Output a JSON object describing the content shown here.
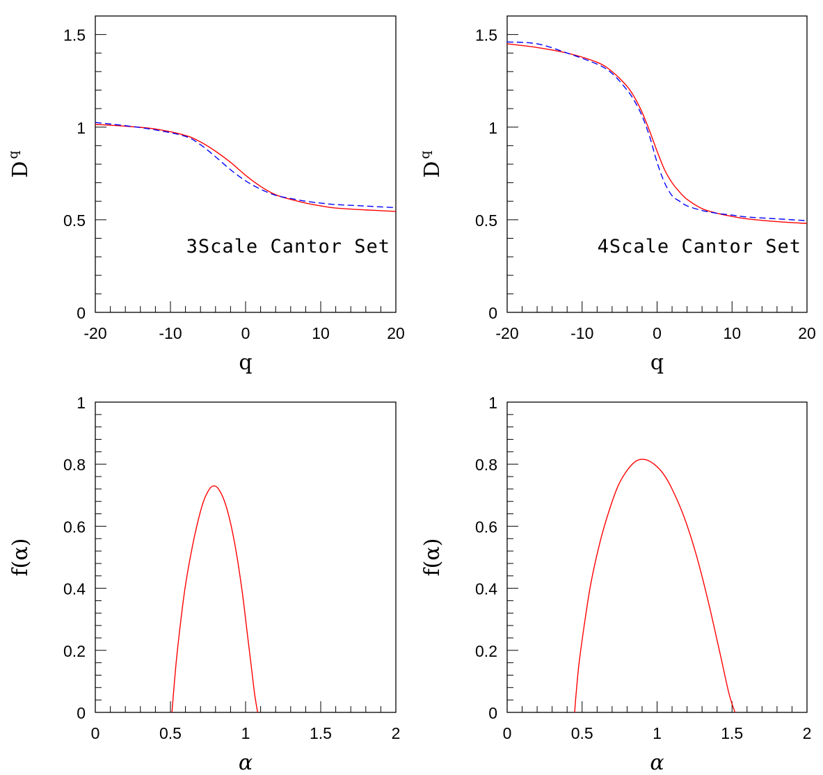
{
  "chart_data": [
    {
      "type": "line",
      "xlabel": "q",
      "ylabel": "D",
      "ylabel_sub": "q",
      "annotation": "3Scale Cantor Set",
      "xlim": [
        -20,
        20
      ],
      "ylim": [
        0,
        1.6
      ],
      "xticks": [
        -20,
        -10,
        0,
        10,
        20
      ],
      "xtick_labels": [
        "-20",
        "-10",
        "0",
        "10",
        "20"
      ],
      "yticks": [
        0,
        0.5,
        1,
        1.5
      ],
      "ytick_labels": [
        "0",
        "0.5",
        "1",
        "1.5"
      ],
      "series": [
        {
          "style": "solid",
          "color": "#ff0000",
          "x": [
            -20,
            -16,
            -12,
            -8,
            -6,
            -4,
            -2,
            0,
            2,
            4,
            6,
            8,
            10,
            12,
            16,
            20
          ],
          "y": [
            1.015,
            1.005,
            0.99,
            0.955,
            0.92,
            0.87,
            0.81,
            0.74,
            0.68,
            0.635,
            0.61,
            0.59,
            0.575,
            0.563,
            0.553,
            0.545
          ]
        },
        {
          "style": "dashed",
          "color": "#0000ff",
          "x": [
            -20,
            -16,
            -12,
            -8,
            -6,
            -4,
            -2,
            0,
            2,
            4,
            6,
            8,
            10,
            12,
            16,
            20
          ],
          "y": [
            1.025,
            1.008,
            0.985,
            0.95,
            0.905,
            0.84,
            0.77,
            0.71,
            0.665,
            0.632,
            0.615,
            0.6,
            0.59,
            0.582,
            0.574,
            0.565
          ]
        }
      ]
    },
    {
      "type": "line",
      "xlabel": "q",
      "ylabel": "D",
      "ylabel_sub": "q",
      "annotation": "4Scale Cantor Set",
      "xlim": [
        -20,
        20
      ],
      "ylim": [
        0,
        1.6
      ],
      "xticks": [
        -20,
        -10,
        0,
        10,
        20
      ],
      "xtick_labels": [
        "-20",
        "-10",
        "0",
        "10",
        "20"
      ],
      "yticks": [
        0,
        0.5,
        1,
        1.5
      ],
      "ytick_labels": [
        "0",
        "0.5",
        "1",
        "1.5"
      ],
      "series": [
        {
          "style": "solid",
          "color": "#ff0000",
          "x": [
            -20,
            -16,
            -12,
            -8,
            -6,
            -4,
            -3,
            -2,
            -1,
            0,
            1,
            2,
            3,
            4,
            6,
            8,
            10,
            12,
            16,
            20
          ],
          "y": [
            1.45,
            1.43,
            1.4,
            1.35,
            1.3,
            1.22,
            1.16,
            1.08,
            0.98,
            0.87,
            0.77,
            0.7,
            0.65,
            0.61,
            0.56,
            0.535,
            0.518,
            0.505,
            0.49,
            0.48
          ]
        },
        {
          "style": "dashed",
          "color": "#0000ff",
          "x": [
            -20,
            -16,
            -12,
            -8,
            -6,
            -4,
            -3,
            -2,
            -1,
            0,
            1,
            2,
            3,
            4,
            6,
            8,
            10,
            12,
            16,
            20
          ],
          "y": [
            1.46,
            1.45,
            1.4,
            1.34,
            1.29,
            1.2,
            1.14,
            1.06,
            0.95,
            0.81,
            0.7,
            0.63,
            0.6,
            0.575,
            0.55,
            0.535,
            0.525,
            0.515,
            0.505,
            0.495
          ]
        }
      ]
    },
    {
      "type": "line",
      "xlabel": "α",
      "ylabel": "f(α)",
      "xlim": [
        0,
        2
      ],
      "ylim": [
        0,
        1
      ],
      "xticks": [
        0,
        0.5,
        1,
        1.5,
        2
      ],
      "xtick_labels": [
        "0",
        "0.5",
        "1",
        "1.5",
        "2"
      ],
      "yticks": [
        0,
        0.2,
        0.4,
        0.6,
        0.8,
        1
      ],
      "ytick_labels": [
        "0",
        "0.2",
        "0.4",
        "0.6",
        "0.8",
        "1"
      ],
      "series": [
        {
          "style": "solid",
          "color": "#ff0000",
          "x": [
            0.51,
            0.52,
            0.54,
            0.57,
            0.6,
            0.64,
            0.68,
            0.72,
            0.76,
            0.79,
            0.82,
            0.86,
            0.9,
            0.94,
            0.98,
            1.01,
            1.04,
            1.06,
            1.08
          ],
          "y": [
            0.0,
            0.06,
            0.17,
            0.3,
            0.41,
            0.52,
            0.61,
            0.68,
            0.72,
            0.73,
            0.72,
            0.68,
            0.61,
            0.51,
            0.38,
            0.26,
            0.14,
            0.06,
            0.0
          ]
        }
      ]
    },
    {
      "type": "line",
      "xlabel": "α",
      "ylabel": "f(α)",
      "xlim": [
        0,
        2
      ],
      "ylim": [
        0,
        1
      ],
      "xticks": [
        0,
        0.5,
        1,
        1.5,
        2
      ],
      "xtick_labels": [
        "0",
        "0.5",
        "1",
        "1.5",
        "2"
      ],
      "yticks": [
        0,
        0.2,
        0.4,
        0.6,
        0.8,
        1
      ],
      "ytick_labels": [
        "0",
        "0.2",
        "0.4",
        "0.6",
        "0.8",
        "1"
      ],
      "series": [
        {
          "style": "solid",
          "color": "#ff0000",
          "x": [
            0.45,
            0.46,
            0.48,
            0.52,
            0.56,
            0.62,
            0.68,
            0.74,
            0.8,
            0.86,
            0.92,
            0.98,
            1.04,
            1.1,
            1.18,
            1.26,
            1.34,
            1.42,
            1.48,
            1.52
          ],
          "y": [
            0.0,
            0.06,
            0.16,
            0.3,
            0.42,
            0.55,
            0.65,
            0.73,
            0.78,
            0.81,
            0.815,
            0.8,
            0.77,
            0.72,
            0.63,
            0.51,
            0.36,
            0.19,
            0.06,
            0.0
          ]
        }
      ]
    }
  ]
}
